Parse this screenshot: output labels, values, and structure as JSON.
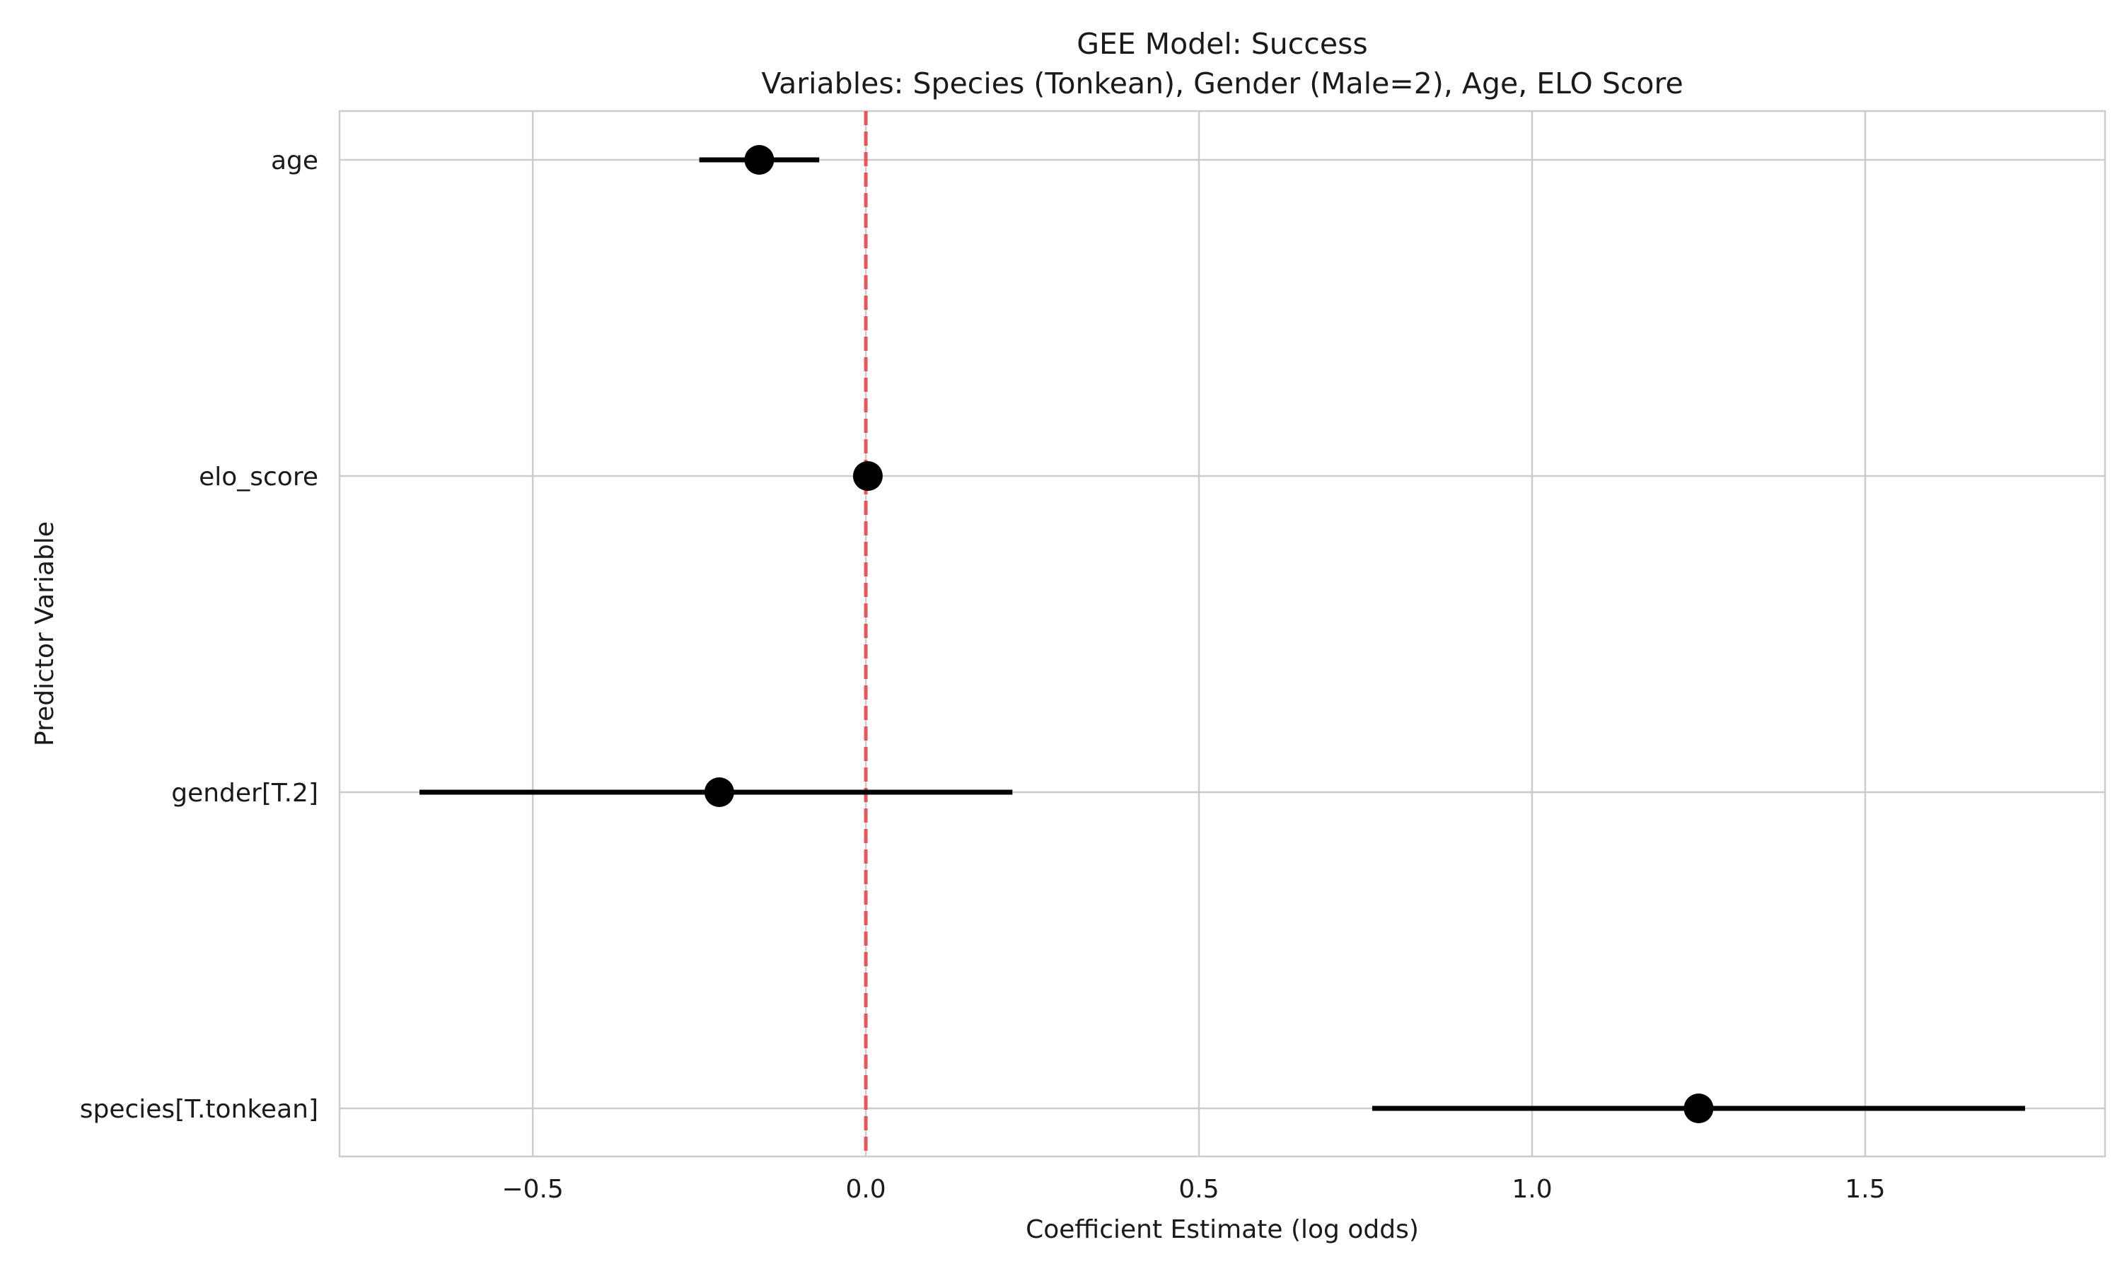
{
  "chart_data": {
    "type": "forest",
    "title": "GEE Model: Success",
    "subtitle": "Variables: Species (Tonkean), Gender (Male=2), Age, ELO Score",
    "xlabel": "Coefficient Estimate (log odds)",
    "ylabel": "Predictor Variable",
    "xlim": [
      -0.79,
      1.86
    ],
    "xticks": [
      -0.5,
      0.0,
      0.5,
      1.0,
      1.5
    ],
    "xtick_labels": [
      "−0.5",
      "0.0",
      "0.5",
      "1.0",
      "1.5"
    ],
    "grid": true,
    "reference_line": {
      "x": 0.0,
      "style": "dashed",
      "color": "#e8555a"
    },
    "point_color": "#000000",
    "grid_color": "#cccccc",
    "predictors": [
      {
        "label": "age",
        "estimate": -0.16,
        "ci_low": -0.25,
        "ci_high": -0.07
      },
      {
        "label": "elo_score",
        "estimate": 0.003,
        "ci_low": -0.002,
        "ci_high": 0.008
      },
      {
        "label": "gender[T.2]",
        "estimate": -0.22,
        "ci_low": -0.67,
        "ci_high": 0.22
      },
      {
        "label": "species[T.tonkean]",
        "estimate": 1.25,
        "ci_low": 0.76,
        "ci_high": 1.74
      }
    ]
  }
}
